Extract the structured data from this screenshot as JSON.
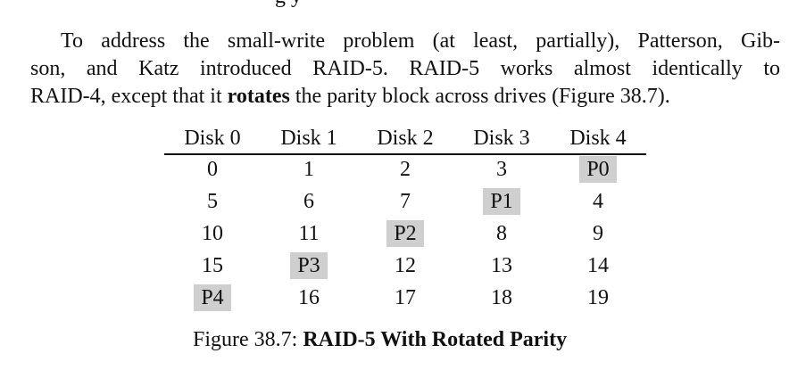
{
  "fragment": "g        y",
  "paragraph": {
    "line1": "To address the small-write problem (at least, partially), Patterson, Gib-",
    "line2": "son, and Katz introduced RAID-5. RAID-5 works almost identically to",
    "line3_pre": "RAID-4, except that it ",
    "line3_bold": "rotates",
    "line3_post": " the parity block across drives (Figure 38.7)."
  },
  "table": {
    "headers": [
      "Disk 0",
      "Disk 1",
      "Disk 2",
      "Disk 3",
      "Disk 4"
    ],
    "rows": [
      [
        "0",
        "1",
        "2",
        "3",
        "P0"
      ],
      [
        "5",
        "6",
        "7",
        "P1",
        "4"
      ],
      [
        "10",
        "11",
        "P2",
        "8",
        "9"
      ],
      [
        "15",
        "P3",
        "12",
        "13",
        "14"
      ],
      [
        "P4",
        "16",
        "17",
        "18",
        "19"
      ]
    ],
    "parity_highlight_color": "#cfcfcf"
  },
  "caption": {
    "label": "Figure 38.7: ",
    "title": "RAID-5 With Rotated Parity"
  }
}
